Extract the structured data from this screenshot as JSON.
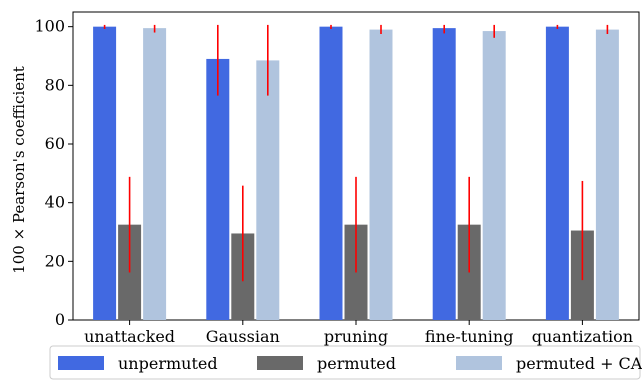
{
  "chart_data": {
    "type": "bar",
    "title": "",
    "xlabel": "",
    "ylabel": "100 × Pearson's coefficient",
    "ylim": [
      0,
      105
    ],
    "yticks": [
      0,
      20,
      40,
      60,
      80,
      100
    ],
    "categories": [
      "unattacked",
      "Gaussian",
      "pruning",
      "fine-tuning",
      "quantization"
    ],
    "series": [
      {
        "name": "unpermuted",
        "color": "#4169e1",
        "values": [
          100,
          89,
          100,
          99.5,
          100
        ],
        "err_low": [
          99.2,
          76.5,
          99.2,
          97.7,
          99.2
        ],
        "err_high": [
          100.6,
          100.6,
          100.6,
          100.6,
          100.6
        ]
      },
      {
        "name": "permuted",
        "color": "#696969",
        "values": [
          32.5,
          29.5,
          32.5,
          32.5,
          30.5
        ],
        "err_low": [
          16.2,
          13.2,
          16.2,
          16.2,
          13.6
        ],
        "err_high": [
          48.8,
          45.8,
          48.8,
          48.8,
          47.4
        ]
      },
      {
        "name": "permuted + CA",
        "color": "#b0c4de",
        "values": [
          99.5,
          88.5,
          99,
          98.5,
          99
        ],
        "err_low": [
          98,
          76.5,
          97.5,
          96.2,
          97.5
        ],
        "err_high": [
          100.6,
          100.6,
          100.6,
          100.6,
          100.6
        ]
      }
    ],
    "error_bar_color": "#ff0000",
    "legend_position": "bottom"
  }
}
